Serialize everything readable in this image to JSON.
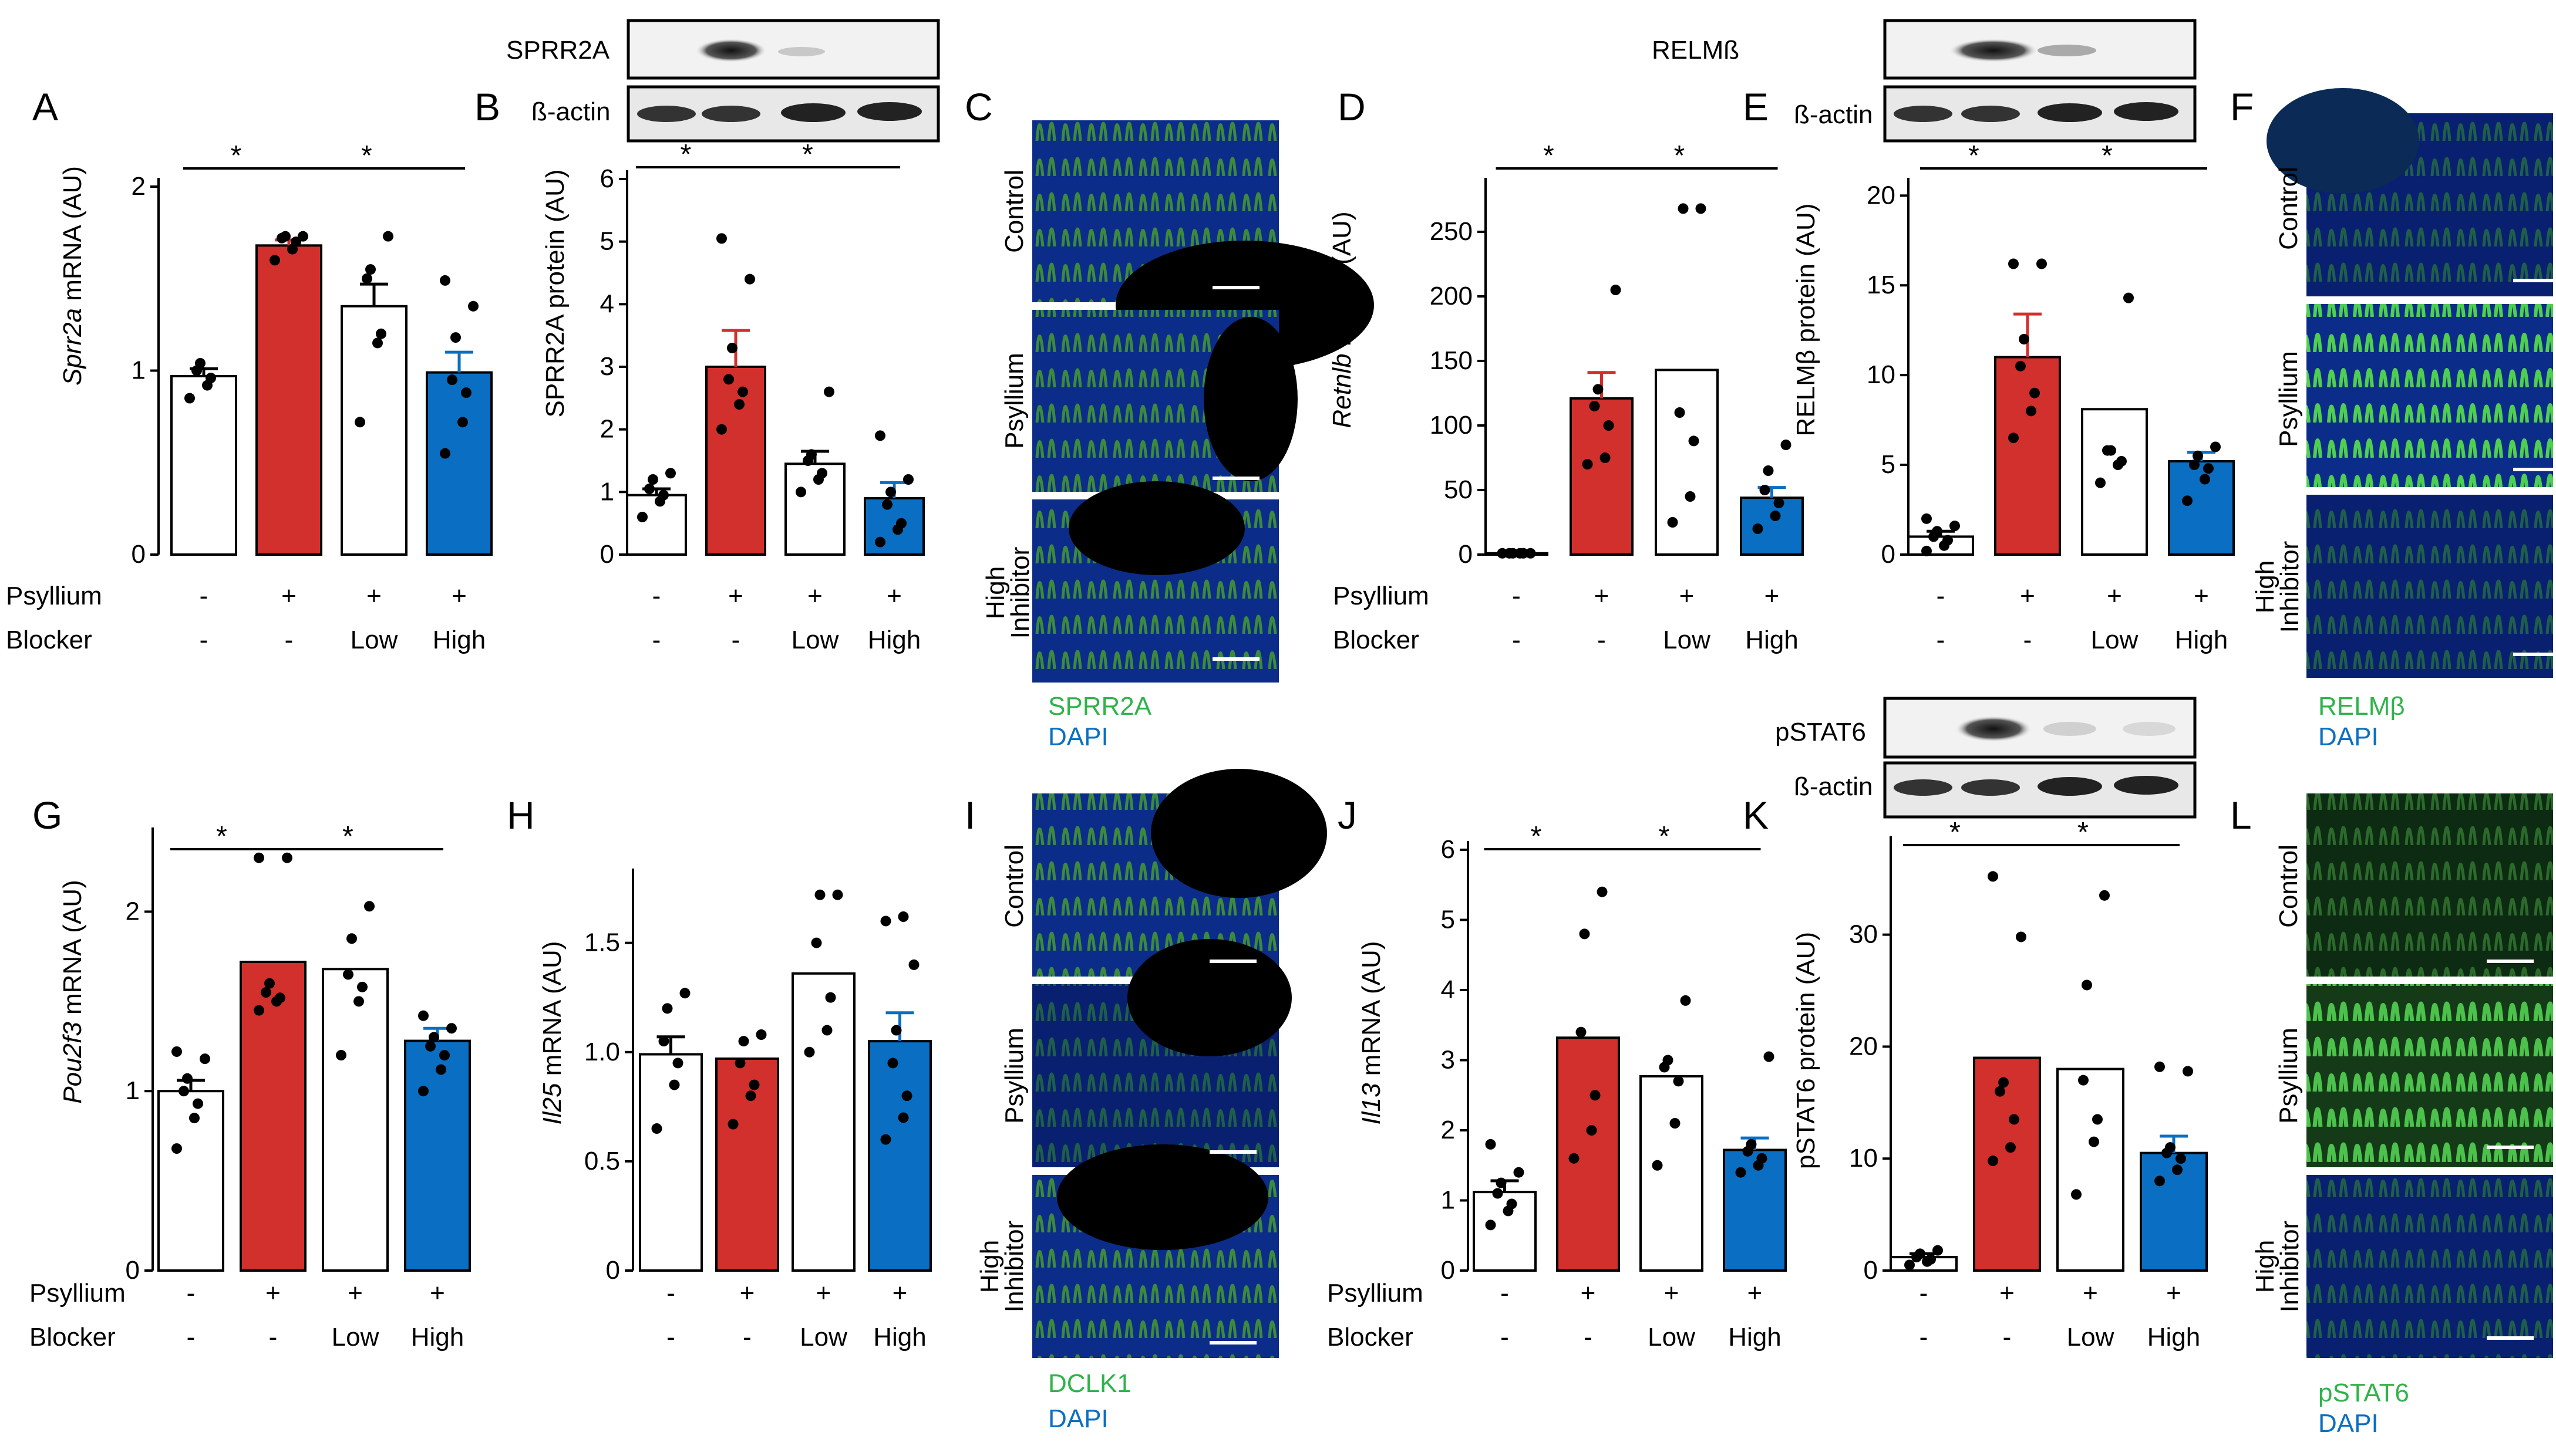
{
  "labels": {
    "psyllium": "Psyllium",
    "blocker": "Blocker",
    "plus": "+",
    "minus": "-",
    "low": "Low",
    "high": "High",
    "high_inhibitor_1": "High",
    "high_inhibitor_2": "Inhibitor",
    "control": "Control",
    "dapi": "DAPI",
    "beta_actin": "ß-actin",
    "sig": "*"
  },
  "colors": {
    "red": "#d2302c",
    "blue": "#0a6fc2",
    "white": "#ffffff",
    "errRed": "#d2302c",
    "errBlue": "#0a6fc2"
  },
  "panels": {
    "A": {
      "letter": "A",
      "ylabel_gene": "Sprr2a",
      "ylabel_rest": " mRNA (AU)"
    },
    "B": {
      "letter": "B",
      "ylabel": "SPRR2A protein (AU)",
      "blot_label": "SPRR2A"
    },
    "C": {
      "letter": "C",
      "stain": "SPRR2A"
    },
    "D": {
      "letter": "D",
      "ylabel_gene": "Retnlb",
      "ylabel_rest": " mRNA (AU)"
    },
    "E": {
      "letter": "E",
      "ylabel": "RELMβ protein (AU)",
      "blot_label": "RELMß"
    },
    "F": {
      "letter": "F",
      "stain": "RELMβ"
    },
    "G": {
      "letter": "G",
      "ylabel_gene": "Pou2f3",
      "ylabel_rest": " mRNA (AU)"
    },
    "H": {
      "letter": "H",
      "ylabel_gene": "Il25",
      "ylabel_rest": " mRNA (AU)"
    },
    "I": {
      "letter": "I",
      "stain": "DCLK1"
    },
    "J": {
      "letter": "J",
      "ylabel_gene": "Il13",
      "ylabel_rest": " mRNA (AU)"
    },
    "K": {
      "letter": "K",
      "ylabel": "pSTAT6 protein (AU)",
      "blot_label": "pSTAT6"
    },
    "L": {
      "letter": "L",
      "stain": "pSTAT6"
    }
  },
  "chart_data": [
    {
      "id": "A",
      "type": "bar",
      "categories": [
        "Control",
        "Psyllium",
        "Psyllium + Low",
        "Psyllium + High"
      ],
      "values": [
        0.97,
        1.68,
        1.35,
        0.99
      ],
      "errors": [
        0.04,
        0.03,
        0.12,
        0.11
      ],
      "ylim": [
        0,
        2
      ],
      "yticks": [
        "0",
        "1",
        "2"
      ],
      "points": [
        [
          0.85,
          0.92,
          0.96,
          1.0,
          1.04
        ],
        [
          1.6,
          1.66,
          1.7,
          1.72,
          1.73,
          1.73
        ],
        [
          0.72,
          1.15,
          1.2,
          1.5,
          1.55,
          1.73
        ],
        [
          0.55,
          0.72,
          0.88,
          0.95,
          1.18,
          1.35,
          1.49
        ]
      ],
      "sig": [
        [
          0,
          1
        ],
        [
          1,
          3
        ]
      ]
    },
    {
      "id": "B",
      "type": "bar",
      "categories": [
        "Control",
        "Psyllium",
        "Psyllium + Low",
        "Psyllium + High"
      ],
      "values": [
        0.95,
        3.0,
        1.45,
        0.9
      ],
      "errors": [
        0.1,
        0.58,
        0.2,
        0.25
      ],
      "ylim": [
        0,
        6
      ],
      "yticks": [
        "0",
        "1",
        "2",
        "3",
        "4",
        "5",
        "6"
      ],
      "points": [
        [
          0.6,
          0.85,
          0.95,
          1.05,
          1.2,
          1.3
        ],
        [
          2.0,
          2.4,
          2.6,
          2.8,
          3.3,
          4.4,
          5.05
        ],
        [
          1.0,
          1.2,
          1.3,
          1.5,
          1.6,
          2.6
        ],
        [
          0.2,
          0.4,
          0.5,
          0.8,
          1.0,
          1.2,
          1.9
        ]
      ],
      "sig": [
        [
          0,
          1
        ],
        [
          1,
          3
        ]
      ]
    },
    {
      "id": "D",
      "type": "bar",
      "categories": [
        "Control",
        "Psyllium",
        "Psyllium + Low",
        "Psyllium + High"
      ],
      "values": [
        1,
        121,
        143,
        44
      ],
      "errors": [
        0.5,
        20,
        0,
        8
      ],
      "ylim": [
        0,
        285
      ],
      "yticks": [
        "0",
        "50",
        "100",
        "150",
        "200",
        "250"
      ],
      "points": [
        [
          1,
          1,
          1,
          1,
          1,
          1
        ],
        [
          70,
          75,
          100,
          115,
          128,
          205
        ],
        [
          25,
          45,
          88,
          110,
          268,
          268
        ],
        [
          20,
          30,
          40,
          50,
          65,
          85
        ]
      ],
      "sig": [
        [
          0,
          1
        ],
        [
          1,
          3
        ]
      ]
    },
    {
      "id": "E",
      "type": "bar",
      "categories": [
        "Control",
        "Psyllium",
        "Psyllium + Low",
        "Psyllium + High"
      ],
      "values": [
        1.0,
        11.0,
        8.1,
        5.2
      ],
      "errors": [
        0.3,
        2.4,
        0,
        0.5
      ],
      "ylim": [
        0,
        20.5
      ],
      "yticks": [
        "0",
        "5",
        "10",
        "15",
        "20"
      ],
      "points": [
        [
          0.2,
          0.5,
          0.8,
          1.0,
          1.3,
          1.6,
          2.0
        ],
        [
          6.5,
          8.0,
          9.0,
          10.5,
          12.0,
          16.2,
          16.2
        ],
        [
          4.0,
          5.0,
          5.2,
          5.8,
          5.8,
          14.3
        ],
        [
          3.0,
          4.2,
          4.8,
          5.0,
          5.5,
          6.0
        ]
      ],
      "sig": [
        [
          0,
          1
        ],
        [
          1,
          3
        ]
      ]
    },
    {
      "id": "G",
      "type": "bar",
      "categories": [
        "Control",
        "Psyllium",
        "Psyllium + Low",
        "Psyllium + High"
      ],
      "values": [
        1.0,
        1.72,
        1.68,
        1.28
      ],
      "errors": [
        0.06,
        0,
        0,
        0.07
      ],
      "ylim": [
        0,
        2.42
      ],
      "yticks": [
        "0",
        "1",
        "2"
      ],
      "points": [
        [
          0.68,
          0.85,
          0.93,
          1.0,
          1.07,
          1.18,
          1.22
        ],
        [
          1.45,
          1.5,
          1.52,
          1.55,
          1.6,
          2.3,
          2.3
        ],
        [
          1.2,
          1.5,
          1.58,
          1.65,
          1.85,
          2.03
        ],
        [
          1.0,
          1.12,
          1.2,
          1.25,
          1.3,
          1.35,
          1.42
        ]
      ],
      "sig": [
        [
          0,
          1
        ],
        [
          1,
          3
        ]
      ]
    },
    {
      "id": "H",
      "type": "bar",
      "categories": [
        "Control",
        "Psyllium",
        "Psyllium + Low",
        "Psyllium + High"
      ],
      "values": [
        0.99,
        0.97,
        1.36,
        1.05
      ],
      "errors": [
        0.08,
        0,
        0,
        0.13
      ],
      "ylim": [
        0,
        1.8
      ],
      "yticks": [
        "0",
        "0.5",
        "1.0",
        "1.5"
      ],
      "points": [
        [
          0.65,
          0.85,
          0.95,
          1.05,
          1.2,
          1.27
        ],
        [
          0.67,
          0.8,
          0.85,
          0.95,
          1.05,
          1.08
        ],
        [
          1.0,
          1.1,
          1.25,
          1.5,
          1.72,
          1.72
        ],
        [
          0.6,
          0.7,
          0.8,
          0.95,
          1.1,
          1.4,
          1.6,
          1.62
        ]
      ],
      "sig": []
    },
    {
      "id": "J",
      "type": "bar",
      "categories": [
        "Control",
        "Psyllium",
        "Psyllium + Low",
        "Psyllium + High"
      ],
      "values": [
        1.12,
        3.32,
        2.77,
        1.72
      ],
      "errors": [
        0.16,
        0,
        0,
        0.17
      ],
      "ylim": [
        0,
        6
      ],
      "yticks": [
        "0",
        "1",
        "2",
        "3",
        "4",
        "5",
        "6"
      ],
      "points": [
        [
          0.65,
          0.85,
          0.95,
          1.1,
          1.25,
          1.4,
          1.8
        ],
        [
          1.6,
          2.0,
          2.5,
          3.4,
          4.8,
          5.4
        ],
        [
          1.5,
          2.1,
          2.7,
          2.9,
          3.0,
          3.85
        ],
        [
          1.4,
          1.5,
          1.6,
          1.7,
          1.8,
          3.05
        ]
      ],
      "sig": [
        [
          0,
          1
        ],
        [
          1,
          3
        ]
      ]
    },
    {
      "id": "K",
      "type": "bar",
      "categories": [
        "Control",
        "Psyllium",
        "Psyllium + Low",
        "Psyllium + High"
      ],
      "values": [
        1.2,
        19.0,
        18.0,
        10.5
      ],
      "errors": [
        0.3,
        0,
        0,
        1.5
      ],
      "ylim": [
        0,
        38
      ],
      "yticks": [
        "0",
        "10",
        "20",
        "30"
      ],
      "points": [
        [
          0.5,
          0.8,
          1.0,
          1.2,
          1.5,
          1.8
        ],
        [
          9.8,
          11.0,
          13.5,
          16.0,
          16.8,
          29.8,
          35.2
        ],
        [
          6.8,
          11.5,
          13.5,
          17.0,
          25.5,
          33.5
        ],
        [
          8.0,
          9.0,
          10.0,
          10.5,
          11.0,
          17.8,
          18.2
        ]
      ],
      "sig": [
        [
          0,
          1
        ],
        [
          1,
          3
        ]
      ]
    }
  ]
}
